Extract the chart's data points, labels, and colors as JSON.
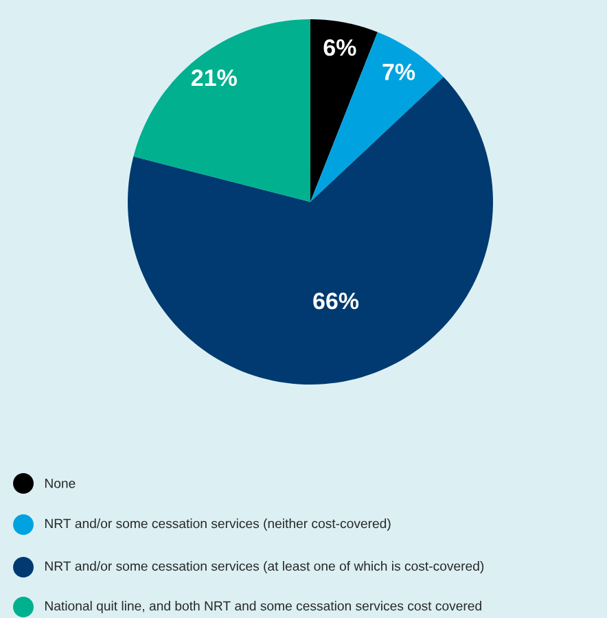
{
  "chart_data": {
    "type": "pie",
    "categories": [
      "None",
      "NRT and/or some cessation services (neither cost-covered)",
      "NRT and/or some cessation services (at least one of which is cost-covered)",
      "National quit line, and both NRT and some cessation services cost covered"
    ],
    "values": [
      6,
      7,
      66,
      21
    ],
    "value_labels": [
      "6%",
      "7%",
      "66%",
      "21%"
    ],
    "colors": [
      "#000000",
      "#00a3e0",
      "#003a70",
      "#00b08f"
    ],
    "legend": "bottom"
  }
}
